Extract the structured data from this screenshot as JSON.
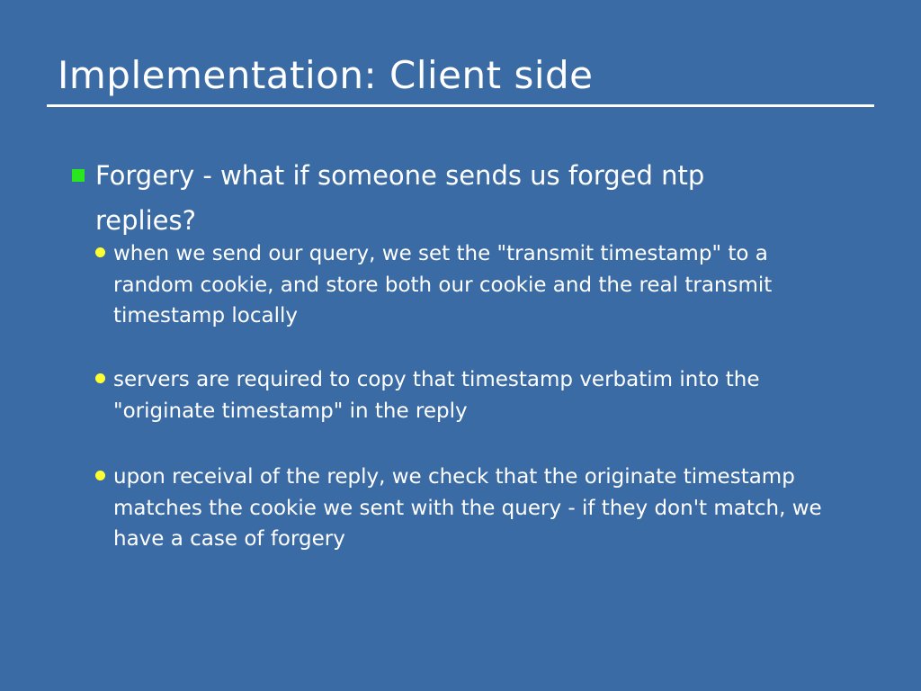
{
  "slide": {
    "title": "Implementation: Client side",
    "background_color": "#3a6ba5",
    "bullet": {
      "marker_color": "#29e61f",
      "text": "Forgery - what if someone sends us forged ntp replies?"
    },
    "sub_bullets": [
      {
        "marker_color": "#ffff33",
        "text": "when we send our query, we set the \"transmit timestamp\" to a random cookie, and store both our cookie and the real transmit timestamp locally"
      },
      {
        "marker_color": "#ffff33",
        "text": "servers are required to copy that timestamp verbatim into the \"originate timestamp\" in the reply"
      },
      {
        "marker_color": "#ffff33",
        "text": "upon receival of the reply, we check that the originate timestamp matches the cookie we sent with the query - if they don't match, we have a case of forgery"
      }
    ]
  }
}
